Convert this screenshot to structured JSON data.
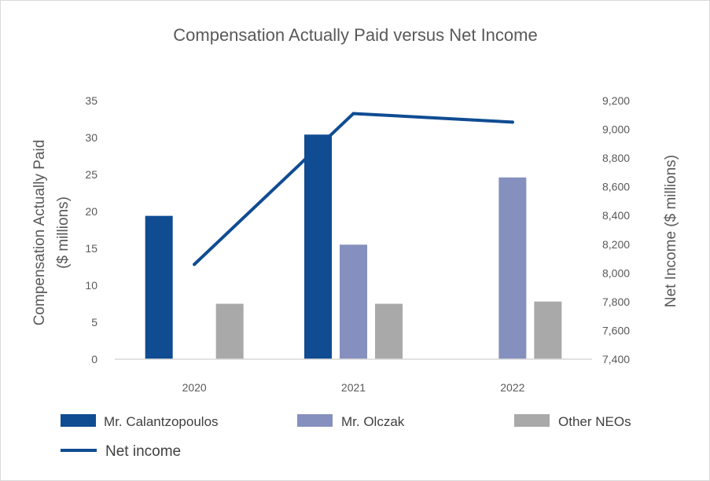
{
  "chart_data": {
    "type": "bar",
    "title": "Compensation Actually Paid versus Net Income",
    "categories": [
      "2020",
      "2021",
      "2022"
    ],
    "ylabel_left_lines": [
      "Compensation Actually Paid",
      "($ millions)"
    ],
    "ylabel_right": "Net Income ($ millions)",
    "ylim_left": [
      0,
      35
    ],
    "yticks_left": [
      "0",
      "5",
      "10",
      "15",
      "20",
      "25",
      "30",
      "35"
    ],
    "ylim_right": [
      7400,
      9200
    ],
    "yticks_right": [
      "7,400",
      "7,600",
      "7,800",
      "8,000",
      "8,200",
      "8,400",
      "8,600",
      "8,800",
      "9,000",
      "9,200"
    ],
    "series": [
      {
        "name": "Mr. Calantzopoulos",
        "kind": "bar",
        "axis": "left",
        "color": "#0f4c92",
        "values": [
          19.4,
          30.4,
          null
        ]
      },
      {
        "name": "Mr. Olczak",
        "kind": "bar",
        "axis": "left",
        "color": "#8690be",
        "values": [
          null,
          15.5,
          24.6
        ]
      },
      {
        "name": "Other NEOs",
        "kind": "bar",
        "axis": "left",
        "color": "#a9a9a9",
        "values": [
          7.5,
          7.5,
          7.8
        ]
      },
      {
        "name": "Net income",
        "kind": "line",
        "axis": "right",
        "color": "#0f4c92",
        "values": [
          8060,
          9110,
          9050
        ]
      }
    ],
    "grid": false,
    "legend_position": "bottom"
  }
}
